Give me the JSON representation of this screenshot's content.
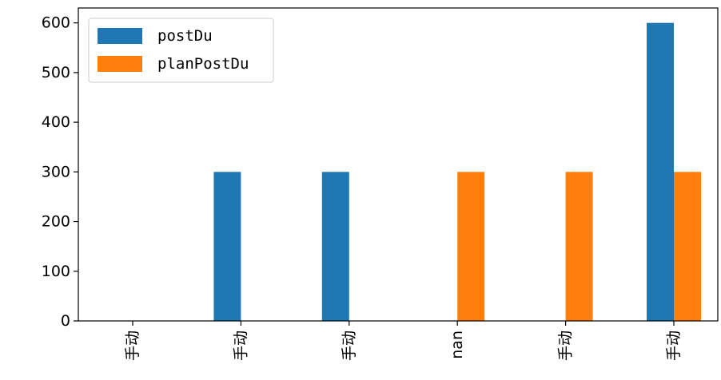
{
  "chart_data": {
    "type": "bar",
    "categories": [
      "手动",
      "手动",
      "手动",
      "nan",
      "手动",
      "手动"
    ],
    "series": [
      {
        "name": "postDu",
        "values": [
          0,
          300,
          300,
          0,
          0,
          600
        ],
        "color": "#1f77b4"
      },
      {
        "name": "planPostDu",
        "values": [
          0,
          0,
          0,
          300,
          300,
          300
        ],
        "color": "#ff7f0e"
      }
    ],
    "ylim": [
      0,
      630
    ],
    "yticks": [
      0,
      100,
      200,
      300,
      400,
      500,
      600
    ],
    "grid": false,
    "legend_position": "top-left"
  }
}
